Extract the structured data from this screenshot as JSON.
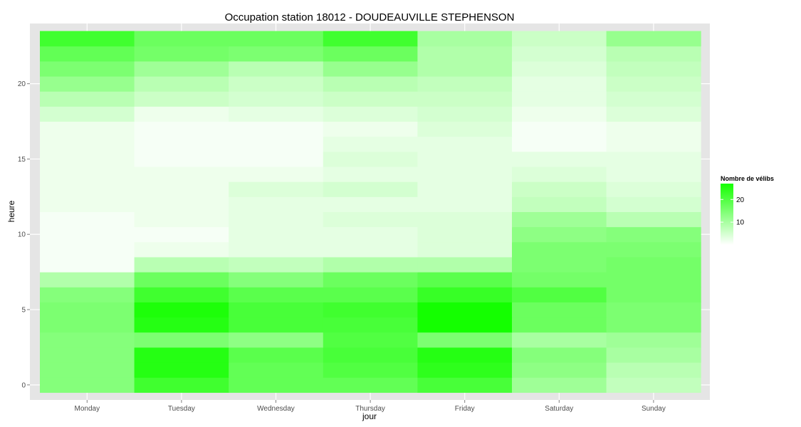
{
  "chart_data": {
    "type": "heatmap",
    "title": "Occupation station 18012 - DOUDEAUVILLE STEPHENSON",
    "xlabel": "jour",
    "ylabel": "heure",
    "categories": [
      "Monday",
      "Tuesday",
      "Wednesday",
      "Thursday",
      "Friday",
      "Saturday",
      "Sunday"
    ],
    "y": [
      0,
      1,
      2,
      3,
      4,
      5,
      6,
      7,
      8,
      9,
      10,
      11,
      12,
      13,
      14,
      15,
      16,
      17,
      18,
      19,
      20,
      21,
      22,
      23
    ],
    "y_ticks": [
      0,
      5,
      10,
      15,
      20
    ],
    "ylim": [
      -1,
      24
    ],
    "values": [
      [
        14,
        22,
        18,
        18,
        21,
        11,
        7
      ],
      [
        14,
        25,
        18,
        20,
        24,
        13,
        8
      ],
      [
        14,
        25,
        19,
        21,
        25,
        14,
        10
      ],
      [
        14,
        15,
        13,
        20,
        15,
        10,
        11
      ],
      [
        15,
        25,
        21,
        21,
        27,
        17,
        15
      ],
      [
        15,
        26,
        21,
        22,
        27,
        17,
        15
      ],
      [
        14,
        22,
        19,
        19,
        23,
        20,
        16
      ],
      [
        9,
        17,
        14,
        17,
        19,
        16,
        16
      ],
      [
        1,
        8,
        7,
        9,
        9,
        15,
        16
      ],
      [
        1,
        2,
        3,
        3,
        4,
        15,
        15
      ],
      [
        1,
        1,
        3,
        3,
        4,
        13,
        14
      ],
      [
        1,
        2,
        3,
        4,
        4,
        11,
        8
      ],
      [
        2,
        2,
        3,
        3,
        3,
        7,
        5
      ],
      [
        2,
        2,
        4,
        5,
        3,
        6,
        4
      ],
      [
        2,
        2,
        2,
        3,
        3,
        4,
        3
      ],
      [
        2,
        1,
        1,
        4,
        3,
        3,
        3
      ],
      [
        2,
        1,
        1,
        3,
        3,
        1,
        2
      ],
      [
        2,
        1,
        1,
        2,
        4,
        1,
        2
      ],
      [
        5,
        2,
        3,
        4,
        5,
        2,
        4
      ],
      [
        8,
        6,
        5,
        6,
        6,
        3,
        5
      ],
      [
        12,
        8,
        6,
        8,
        7,
        3,
        6
      ],
      [
        15,
        11,
        8,
        12,
        9,
        4,
        7
      ],
      [
        18,
        16,
        15,
        17,
        9,
        5,
        8
      ],
      [
        22,
        17,
        17,
        22,
        10,
        6,
        12
      ]
    ],
    "color_scale": {
      "low": "#ffffff",
      "high": "#14ff00",
      "min": 0,
      "max": 27
    },
    "legend": {
      "title": "Nombre de vélibs",
      "labels": [
        20,
        10
      ],
      "placement": "right"
    }
  }
}
